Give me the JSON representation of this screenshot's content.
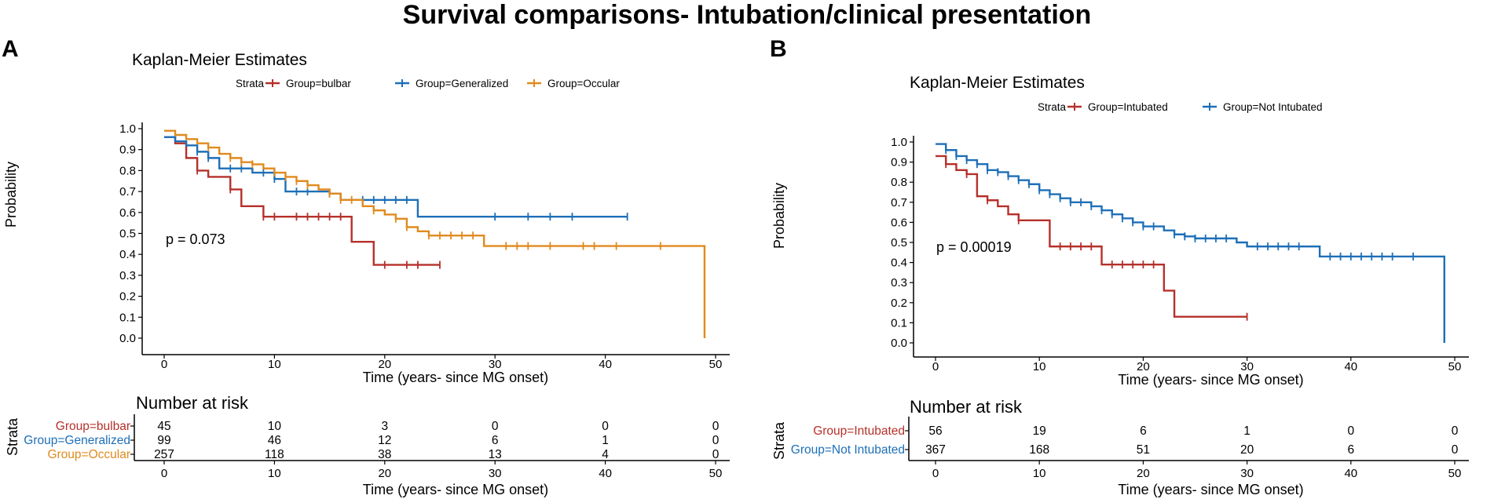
{
  "figure_title": "Survival comparisons- Intubation/clinical presentation",
  "colors": {
    "red": "#b5302a",
    "blue": "#1d6fb8",
    "orange": "#e08a1e",
    "axis": "#000000"
  },
  "chart_data": [
    {
      "panel": "A",
      "type": "line",
      "subtype": "kaplan-meier step",
      "title": "Kaplan-Meier Estimates",
      "xlabel": "Time (years- since MG onset)",
      "ylabel": "Probability",
      "xlim": [
        0,
        50
      ],
      "ylim": [
        0,
        1
      ],
      "x_ticks": [
        0,
        10,
        20,
        30,
        40,
        50
      ],
      "y_ticks": [
        0.0,
        0.1,
        0.2,
        0.3,
        0.4,
        0.5,
        0.6,
        0.7,
        0.8,
        0.9,
        1.0
      ],
      "legend_title": "Strata",
      "legend_position": "top",
      "annotation": "p = 0.073",
      "series": [
        {
          "name": "Group=bulbar",
          "color_key": "red",
          "steps": [
            [
              0,
              0.96
            ],
            [
              1,
              0.93
            ],
            [
              2,
              0.86
            ],
            [
              3,
              0.8
            ],
            [
              4,
              0.77
            ],
            [
              6,
              0.71
            ],
            [
              7,
              0.63
            ],
            [
              9,
              0.58
            ],
            [
              17,
              0.46
            ],
            [
              19,
              0.35
            ],
            [
              25,
              0.35
            ]
          ],
          "censor_x": [
            3,
            6,
            9,
            10,
            12,
            13,
            14,
            15,
            16,
            20,
            22,
            23,
            25
          ]
        },
        {
          "name": "Group=Generalized",
          "color_key": "blue",
          "steps": [
            [
              0,
              0.96
            ],
            [
              1,
              0.94
            ],
            [
              2,
              0.92
            ],
            [
              3,
              0.89
            ],
            [
              4,
              0.86
            ],
            [
              5,
              0.81
            ],
            [
              8,
              0.79
            ],
            [
              10,
              0.76
            ],
            [
              11,
              0.7
            ],
            [
              15,
              0.69
            ],
            [
              16,
              0.66
            ],
            [
              23,
              0.58
            ],
            [
              42,
              0.58
            ]
          ],
          "censor_x": [
            3,
            4,
            6,
            7,
            9,
            10,
            12,
            13,
            15,
            18,
            19,
            20,
            21,
            22,
            30,
            33,
            35,
            37,
            42
          ]
        },
        {
          "name": "Group=Occular",
          "color_key": "orange",
          "steps": [
            [
              0,
              0.99
            ],
            [
              1,
              0.97
            ],
            [
              2,
              0.95
            ],
            [
              3,
              0.93
            ],
            [
              4,
              0.91
            ],
            [
              5,
              0.88
            ],
            [
              6,
              0.86
            ],
            [
              7,
              0.84
            ],
            [
              8,
              0.83
            ],
            [
              9,
              0.81
            ],
            [
              10,
              0.79
            ],
            [
              11,
              0.77
            ],
            [
              12,
              0.75
            ],
            [
              13,
              0.73
            ],
            [
              14,
              0.71
            ],
            [
              15,
              0.69
            ],
            [
              16,
              0.66
            ],
            [
              18,
              0.63
            ],
            [
              19,
              0.61
            ],
            [
              20,
              0.59
            ],
            [
              21,
              0.57
            ],
            [
              22,
              0.53
            ],
            [
              23,
              0.51
            ],
            [
              24,
              0.49
            ],
            [
              29,
              0.44
            ],
            [
              49,
              0.44
            ],
            [
              49,
              0.0
            ]
          ],
          "censor_x": [
            4,
            6,
            7,
            8,
            10,
            11,
            12,
            13,
            15,
            16,
            17,
            19,
            21,
            22,
            24,
            25,
            26,
            27,
            28,
            31,
            32,
            33,
            35,
            38,
            39,
            41,
            45
          ]
        }
      ],
      "risk_table": {
        "title": "Number at risk",
        "strata_label": "Strata",
        "times": [
          0,
          10,
          20,
          30,
          40,
          50
        ],
        "rows": [
          {
            "label": "Group=bulbar",
            "color_key": "red",
            "values": [
              "45",
              "10",
              "3",
              "0",
              "0",
              "0"
            ]
          },
          {
            "label": "Group=Generalized",
            "color_key": "blue",
            "values": [
              "99",
              "46",
              "12",
              "6",
              "1",
              "0"
            ]
          },
          {
            "label": "Group=Occular",
            "color_key": "orange",
            "values": [
              "257",
              "118",
              "38",
              "13",
              "4",
              "0"
            ]
          }
        ]
      }
    },
    {
      "panel": "B",
      "type": "line",
      "subtype": "kaplan-meier step",
      "title": "Kaplan-Meier Estimates",
      "xlabel": "Time (years- since MG onset)",
      "ylabel": "Probability",
      "xlim": [
        0,
        50
      ],
      "ylim": [
        0,
        1
      ],
      "x_ticks": [
        0,
        10,
        20,
        30,
        40,
        50
      ],
      "y_ticks": [
        0.0,
        0.1,
        0.2,
        0.3,
        0.4,
        0.5,
        0.6,
        0.7,
        0.8,
        0.9,
        1.0
      ],
      "legend_title": "Strata",
      "legend_position": "top",
      "annotation": "p = 0.00019",
      "series": [
        {
          "name": "Group=Intubated",
          "color_key": "red",
          "steps": [
            [
              0,
              0.93
            ],
            [
              1,
              0.89
            ],
            [
              2,
              0.86
            ],
            [
              3,
              0.84
            ],
            [
              4,
              0.73
            ],
            [
              5,
              0.71
            ],
            [
              6,
              0.68
            ],
            [
              7,
              0.64
            ],
            [
              8,
              0.61
            ],
            [
              10,
              0.61
            ],
            [
              11,
              0.48
            ],
            [
              16,
              0.39
            ],
            [
              22,
              0.26
            ],
            [
              23,
              0.13
            ],
            [
              30,
              0.13
            ]
          ],
          "censor_x": [
            1,
            3,
            5,
            8,
            12,
            13,
            14,
            15,
            17,
            18,
            19,
            20,
            21,
            30
          ]
        },
        {
          "name": "Group=Not Intubated",
          "color_key": "blue",
          "steps": [
            [
              0,
              0.99
            ],
            [
              1,
              0.96
            ],
            [
              2,
              0.93
            ],
            [
              3,
              0.91
            ],
            [
              4,
              0.89
            ],
            [
              5,
              0.86
            ],
            [
              6,
              0.85
            ],
            [
              7,
              0.83
            ],
            [
              8,
              0.81
            ],
            [
              9,
              0.79
            ],
            [
              10,
              0.76
            ],
            [
              11,
              0.74
            ],
            [
              12,
              0.72
            ],
            [
              13,
              0.7
            ],
            [
              15,
              0.68
            ],
            [
              16,
              0.66
            ],
            [
              17,
              0.64
            ],
            [
              18,
              0.62
            ],
            [
              19,
              0.6
            ],
            [
              20,
              0.58
            ],
            [
              22,
              0.56
            ],
            [
              23,
              0.54
            ],
            [
              24,
              0.53
            ],
            [
              25,
              0.52
            ],
            [
              29,
              0.5
            ],
            [
              30,
              0.48
            ],
            [
              37,
              0.43
            ],
            [
              49,
              0.43
            ],
            [
              49,
              0.0
            ]
          ],
          "censor_x": [
            1,
            2,
            3,
            4,
            5,
            6,
            7,
            8,
            9,
            10,
            11,
            12,
            13,
            14,
            15,
            16,
            17,
            18,
            19,
            20,
            21,
            23,
            24,
            25,
            26,
            27,
            28,
            31,
            32,
            33,
            34,
            35,
            38,
            39,
            40,
            41,
            42,
            43,
            44,
            46
          ]
        }
      ],
      "risk_table": {
        "title": "Number at risk",
        "strata_label": "Strata",
        "times": [
          0,
          10,
          20,
          30,
          40,
          50
        ],
        "rows": [
          {
            "label": "Group=Intubated",
            "color_key": "red",
            "values": [
              "56",
              "19",
              "6",
              "1",
              "0",
              "0"
            ]
          },
          {
            "label": "Group=Not Intubated",
            "color_key": "blue",
            "values": [
              "367",
              "168",
              "51",
              "20",
              "6",
              "0"
            ]
          }
        ]
      }
    }
  ]
}
